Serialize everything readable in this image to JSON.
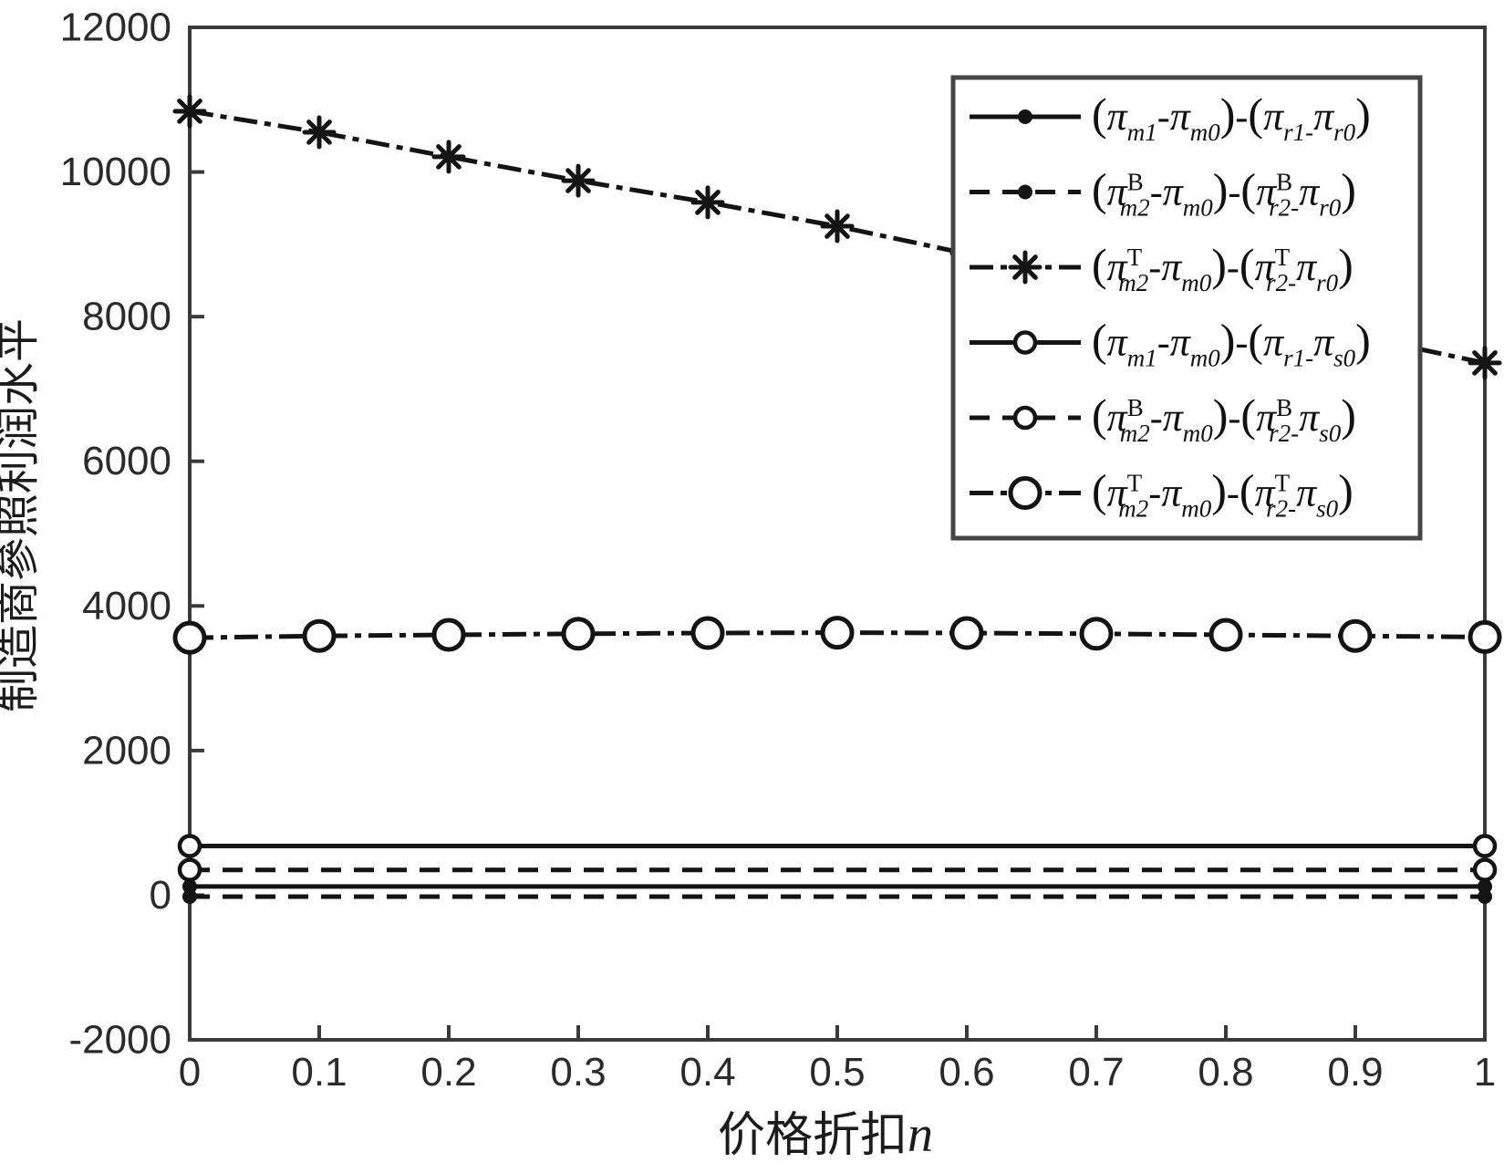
{
  "figure": {
    "background": "#ffffff",
    "line_color": "#141414",
    "spine_color": "#3a3a3a",
    "tick_label_color": "#2b2b2b"
  },
  "chart_data": {
    "type": "line",
    "title": "",
    "xlabel": {
      "text": "价格折扣",
      "var": "n"
    },
    "ylabel": "制造商參照利润水平",
    "xlim": [
      0,
      1
    ],
    "ylim": [
      -2000,
      12000
    ],
    "grid": false,
    "x_tick_labels": [
      "0",
      "0.1",
      "0.2",
      "0.3",
      "0.4",
      "0.5",
      "0.6",
      "0.7",
      "0.8",
      "0.9",
      "1"
    ],
    "x_ticks": [
      0,
      0.1,
      0.2,
      0.3,
      0.4,
      0.5,
      0.6,
      0.7,
      0.8,
      0.9,
      1
    ],
    "y_tick_labels": [
      "12000",
      "10000",
      "8000",
      "6000",
      "4000",
      "2000",
      "0",
      "-2000"
    ],
    "y_ticks": [
      12000,
      10000,
      8000,
      6000,
      4000,
      2000,
      0,
      -2000
    ],
    "legend_position": "upper-right-inside",
    "x": [
      0,
      0.1,
      0.2,
      0.3,
      0.4,
      0.5,
      0.6,
      0.7,
      0.8,
      0.9,
      1
    ],
    "series": [
      {
        "label": "(π_{m1}-π_{m0})-(π_{r1-}π_{r0})",
        "linestyle": "solid",
        "marker": "point",
        "marker_at": "ends",
        "values": [
          120,
          120,
          120,
          120,
          120,
          120,
          120,
          120,
          120,
          120,
          120
        ]
      },
      {
        "label": "(π^{B}_{m2}-π_{m0})-(π^{B}_{r2-}π_{r0})",
        "linestyle": "dashed",
        "marker": "point",
        "marker_at": "ends",
        "values": [
          -20,
          -20,
          -20,
          -20,
          -20,
          -20,
          -20,
          -20,
          -20,
          -20,
          -20
        ]
      },
      {
        "label": "(π^{T}_{m2}-π_{m0})-(π^{T}_{r2-}π_{r0})",
        "linestyle": "dashdot",
        "marker": "asterisk",
        "marker_at": "all",
        "values": [
          10840,
          10550,
          10210,
          9880,
          9580,
          9250,
          8870,
          8490,
          8110,
          7740,
          7360
        ]
      },
      {
        "label": "(π_{m1}-π_{m0})-(π_{r1-}π_{s0})",
        "linestyle": "solid",
        "marker": "circle",
        "marker_at": "ends",
        "values": [
          680,
          680,
          680,
          680,
          680,
          680,
          680,
          680,
          680,
          680,
          680
        ]
      },
      {
        "label": "(π^{B}_{m2}-π_{m0})-(π^{B}_{r2-}π_{s0})",
        "linestyle": "dashed",
        "marker": "circle",
        "marker_at": "ends",
        "values": [
          350,
          350,
          350,
          350,
          350,
          350,
          350,
          350,
          350,
          350,
          350
        ]
      },
      {
        "label": "(π^{T}_{m2}-π_{m0})-(π^{T}_{r2-}π_{s0})",
        "linestyle": "dashdot",
        "marker": "circle-large",
        "marker_at": "all",
        "values": [
          3560,
          3585,
          3600,
          3615,
          3625,
          3630,
          3625,
          3615,
          3600,
          3585,
          3570
        ]
      }
    ]
  }
}
